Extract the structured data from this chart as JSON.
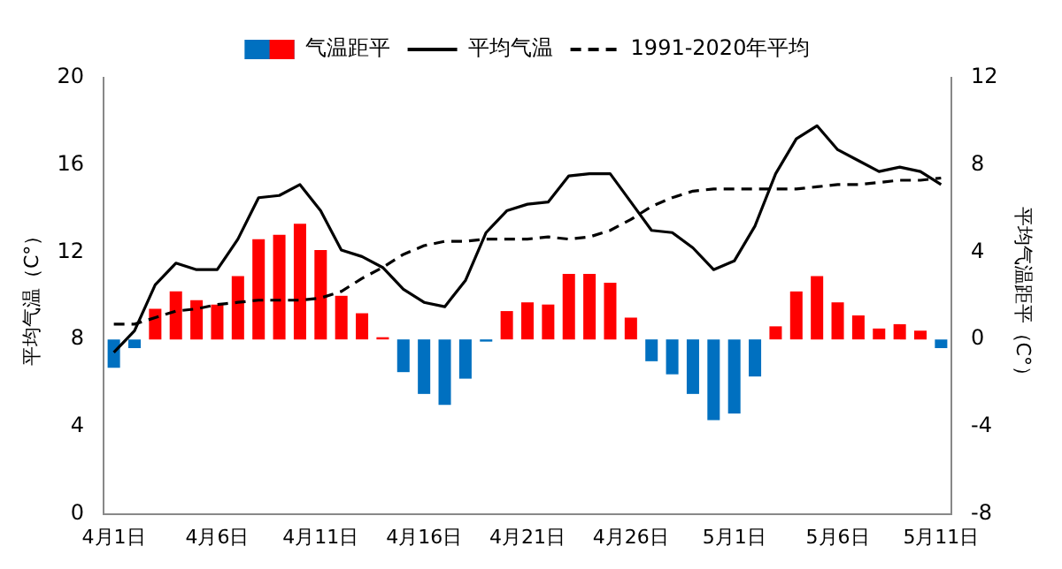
{
  "chart_data": {
    "type": "bar",
    "ylabel": "平均气温（C°）",
    "y2label": "平均气温距平（C°）",
    "categories": [
      "4月1日",
      null,
      null,
      null,
      null,
      "4月6日",
      null,
      null,
      null,
      null,
      "4月11日",
      null,
      null,
      null,
      null,
      "4月16日",
      null,
      null,
      null,
      null,
      "4月21日",
      null,
      null,
      null,
      null,
      "4月26日",
      null,
      null,
      null,
      null,
      "5月1日",
      null,
      null,
      null,
      null,
      "5月6日",
      null,
      null,
      null,
      null,
      "5月11日"
    ],
    "series": [
      {
        "name": "气温距平",
        "axis": "y2",
        "values": [
          -1.3,
          -0.4,
          1.4,
          2.2,
          1.8,
          1.6,
          2.9,
          4.6,
          4.8,
          5.3,
          4.1,
          2.0,
          1.2,
          0.1,
          -1.5,
          -2.5,
          -3.0,
          -1.8,
          -0.1,
          1.3,
          1.7,
          1.6,
          3.0,
          3.0,
          2.6,
          1.0,
          -1.0,
          -1.6,
          -2.5,
          -3.7,
          -3.4,
          -1.7,
          0.6,
          2.2,
          2.9,
          1.7,
          1.1,
          0.5,
          0.7,
          0.4,
          -0.4
        ],
        "colors": [
          "#0070c0",
          "#0070c0",
          "#ff0000",
          "#ff0000",
          "#ff0000",
          "#ff0000",
          "#ff0000",
          "#ff0000",
          "#ff0000",
          "#ff0000",
          "#ff0000",
          "#ff0000",
          "#ff0000",
          "#ff0000",
          "#0070c0",
          "#0070c0",
          "#0070c0",
          "#0070c0",
          "#0070c0",
          "#ff0000",
          "#ff0000",
          "#ff0000",
          "#ff0000",
          "#ff0000",
          "#ff0000",
          "#ff0000",
          "#0070c0",
          "#0070c0",
          "#0070c0",
          "#0070c0",
          "#0070c0",
          "#0070c0",
          "#ff0000",
          "#ff0000",
          "#ff0000",
          "#ff0000",
          "#ff0000",
          "#ff0000",
          "#ff0000",
          "#ff0000",
          "#0070c0"
        ]
      },
      {
        "type": "line",
        "name": "平均气温",
        "color": "#000000",
        "line_style": "solid",
        "values": [
          7.4,
          8.4,
          10.5,
          11.5,
          11.2,
          11.2,
          12.6,
          14.5,
          14.6,
          15.1,
          13.9,
          12.1,
          11.8,
          11.3,
          10.3,
          9.7,
          9.5,
          10.7,
          12.9,
          13.9,
          14.2,
          14.3,
          15.5,
          15.6,
          15.6,
          14.3,
          13.0,
          12.9,
          12.2,
          11.2,
          11.6,
          13.2,
          15.6,
          17.2,
          17.8,
          16.7,
          16.2,
          15.7,
          15.9,
          15.7,
          15.1
        ]
      },
      {
        "type": "line",
        "name": "1991-2020年平均",
        "color": "#000000",
        "line_style": "dashed",
        "values": [
          8.7,
          8.7,
          9.0,
          9.3,
          9.4,
          9.6,
          9.7,
          9.8,
          9.8,
          9.8,
          9.9,
          10.2,
          10.8,
          11.3,
          11.9,
          12.3,
          12.5,
          12.5,
          12.6,
          12.6,
          12.6,
          12.7,
          12.6,
          12.7,
          13.0,
          13.5,
          14.1,
          14.5,
          14.8,
          14.9,
          14.9,
          14.9,
          14.9,
          14.9,
          15.0,
          15.1,
          15.1,
          15.2,
          15.3,
          15.3,
          15.4
        ]
      }
    ],
    "ylim": [
      0,
      20
    ],
    "yticks": [
      0,
      4,
      8,
      12,
      16,
      20
    ],
    "y2lim": [
      -8,
      12
    ],
    "y2ticks": [
      -8,
      -4,
      0,
      4,
      8,
      12
    ],
    "grid": false,
    "legend": "top",
    "marker": "none"
  }
}
